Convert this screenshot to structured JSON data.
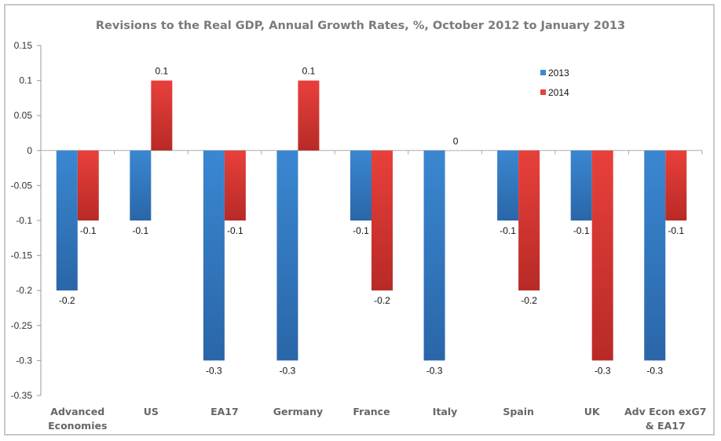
{
  "chart_data": {
    "type": "bar",
    "title": "Revisions to the Real GDP, Annual Growth Rates, %, October 2012 to January 2013",
    "xlabel": "",
    "ylabel": "",
    "ylim": [
      -0.35,
      0.15
    ],
    "yticks": [
      0.15,
      0.1,
      0.05,
      0,
      -0.05,
      -0.1,
      -0.15,
      -0.2,
      -0.25,
      -0.3,
      -0.35
    ],
    "ytick_labels": [
      "0.15",
      "0.1",
      "0.05",
      "0",
      "-0.05",
      "-0.1",
      "-0.15",
      "-0.2",
      "-0.25",
      "-0.3",
      "-0.35"
    ],
    "grid": false,
    "legend_position": "top-right",
    "categories": [
      [
        "Advanced",
        "Economies"
      ],
      [
        "US"
      ],
      [
        "EA17"
      ],
      [
        "Germany"
      ],
      [
        "France"
      ],
      [
        "Italy"
      ],
      [
        "Spain"
      ],
      [
        "UK"
      ],
      [
        "Adv Econ exG7",
        "& EA17"
      ]
    ],
    "series": [
      {
        "name": "2013",
        "color": "#3a87d1",
        "color_dark": "#2a66a8",
        "values": [
          -0.2,
          -0.1,
          -0.3,
          -0.3,
          -0.1,
          -0.3,
          -0.1,
          -0.1,
          -0.3
        ],
        "labels": [
          "-0.2",
          "-0.1",
          "-0.3",
          "-0.3",
          "-0.1",
          "-0.3",
          "-0.1",
          "-0.1",
          "-0.3"
        ]
      },
      {
        "name": "2014",
        "color": "#e8403b",
        "color_dark": "#b82a26",
        "values": [
          -0.1,
          0.1,
          -0.1,
          0.1,
          -0.2,
          0,
          -0.2,
          -0.3,
          -0.1
        ],
        "labels": [
          "-0.1",
          "0.1",
          "-0.1",
          "0.1",
          "-0.2",
          "0",
          "-0.2",
          "-0.3",
          "-0.1"
        ]
      }
    ]
  }
}
